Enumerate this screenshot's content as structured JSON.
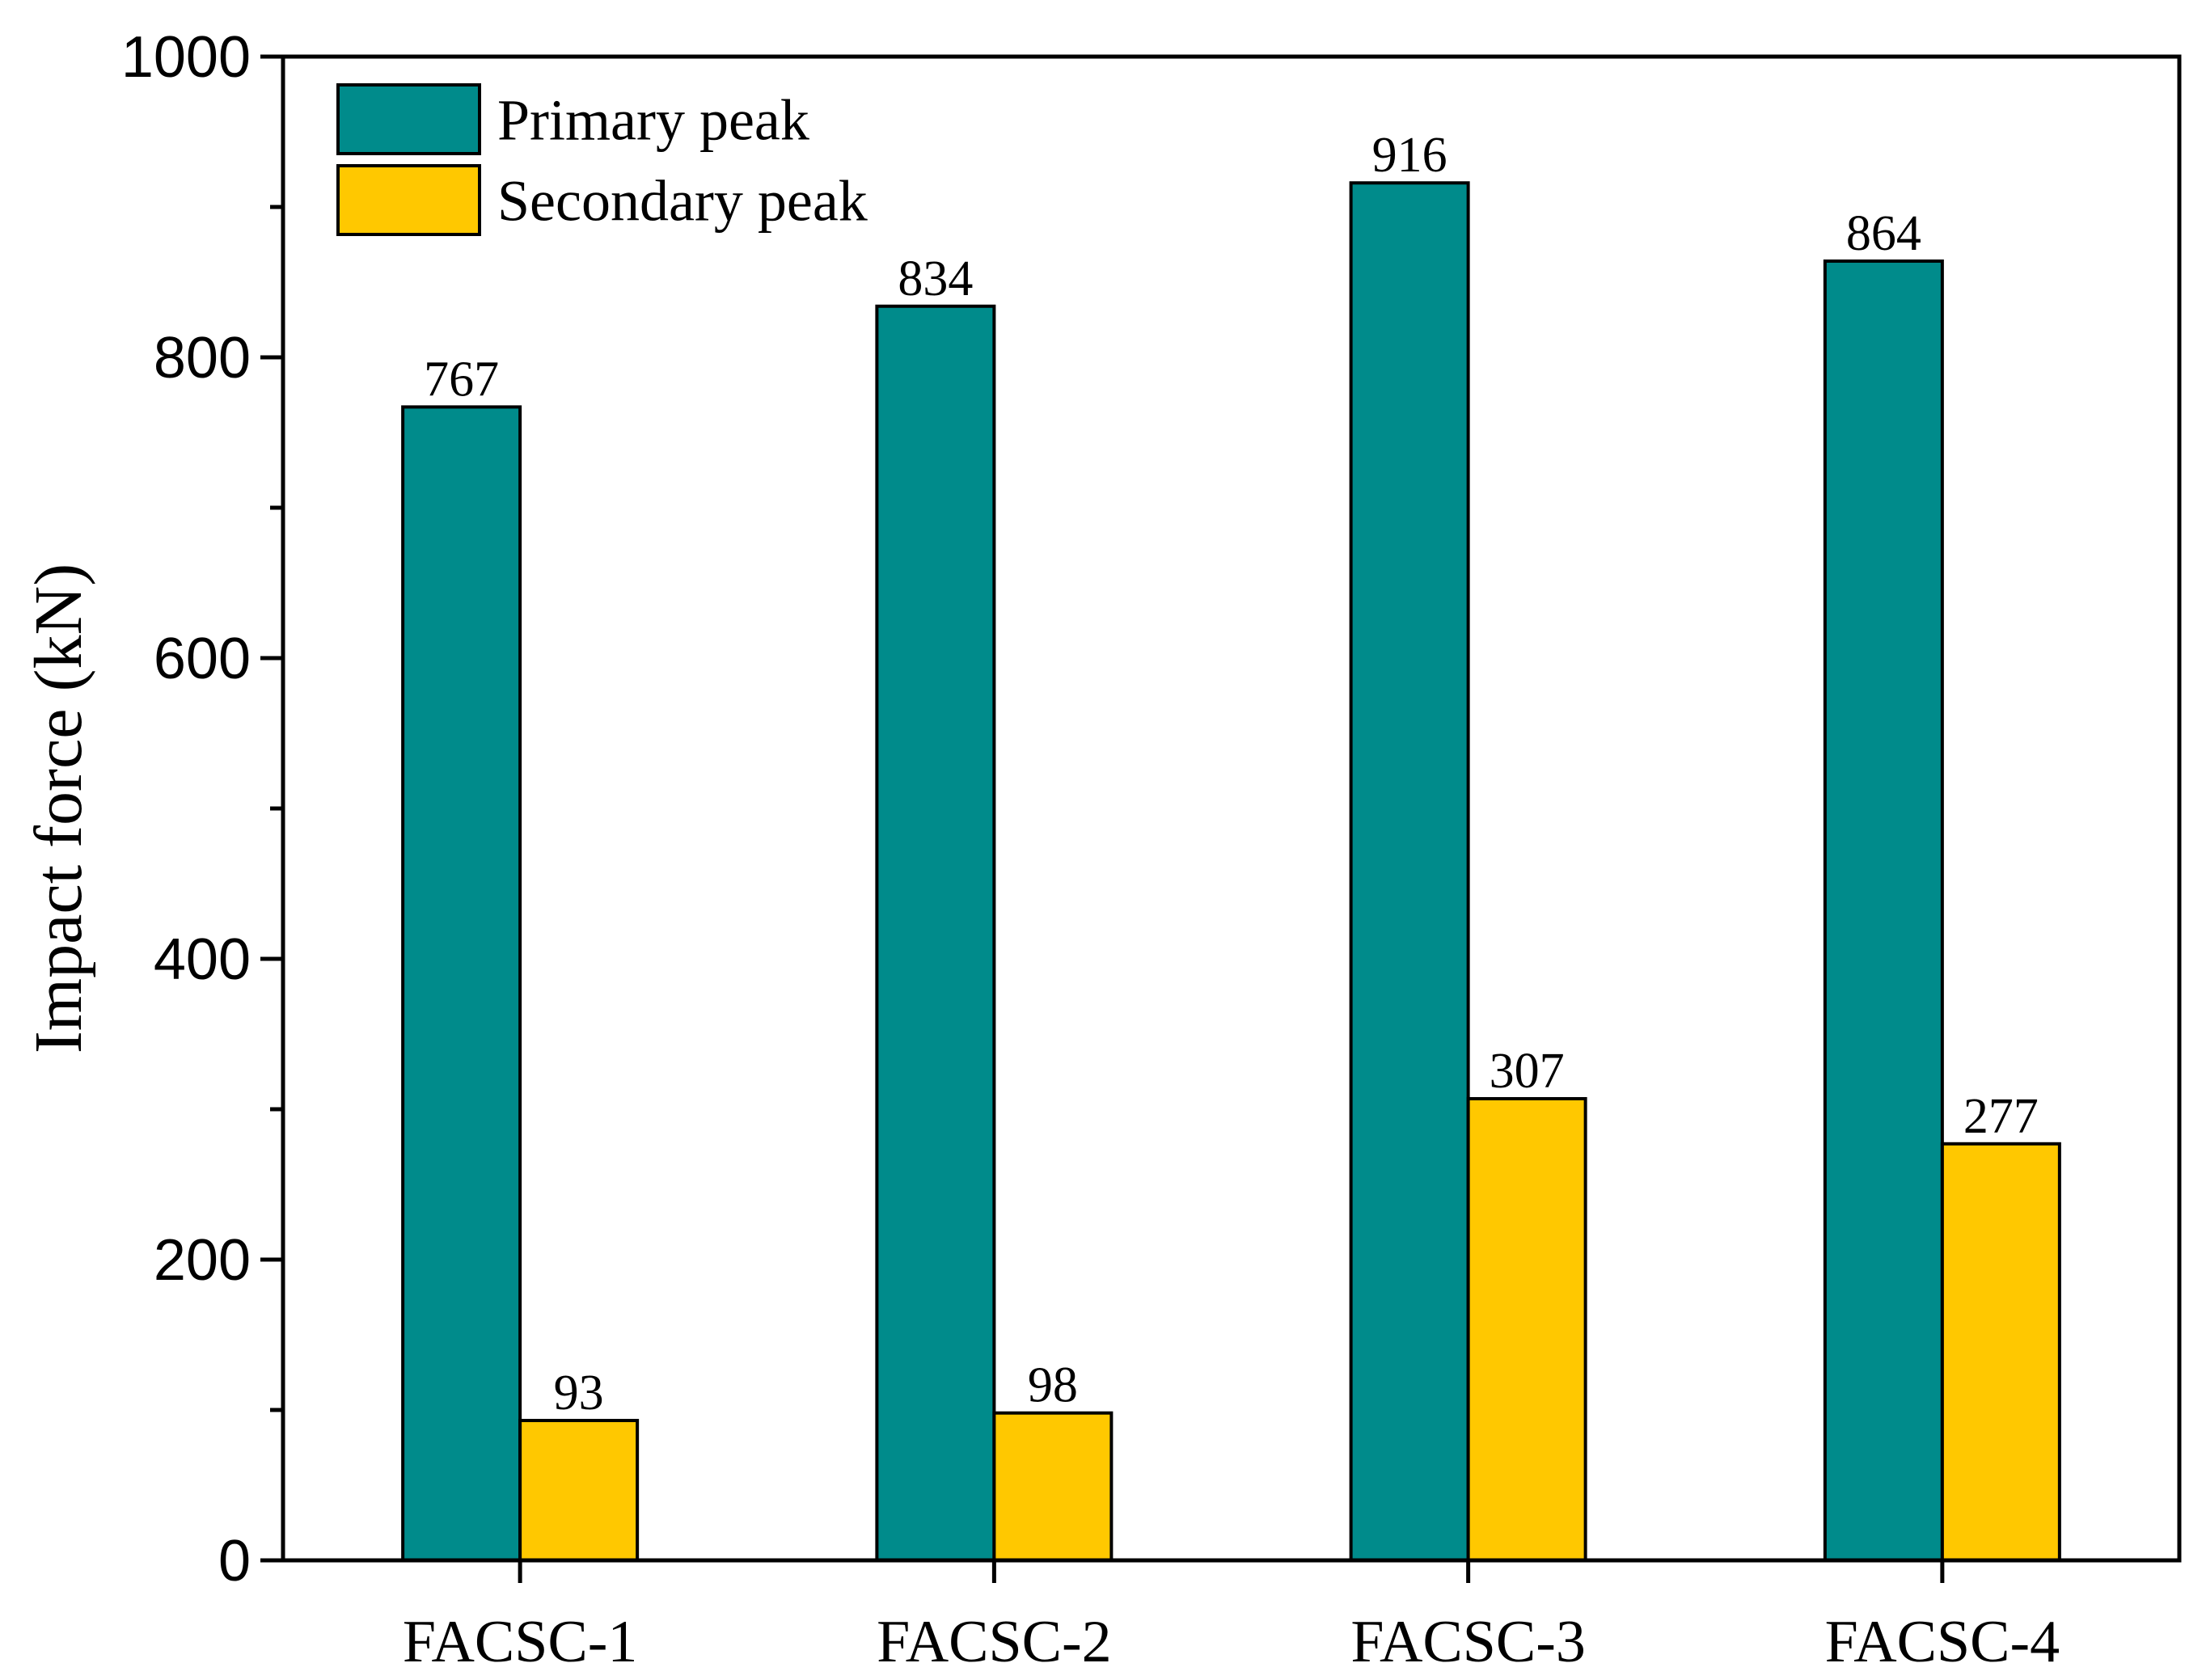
{
  "chart_data": {
    "type": "bar",
    "title": "",
    "xlabel": "",
    "ylabel": "Impact force (kN)",
    "ylim": [
      0,
      1000
    ],
    "yticks": [
      0,
      200,
      400,
      600,
      800,
      1000
    ],
    "categories": [
      "FACSC-1",
      "FACSC-2",
      "FACSC-3",
      "FACSC-4"
    ],
    "series": [
      {
        "name": "Primary peak",
        "color": "#008B8B",
        "values": [
          767,
          834,
          916,
          864
        ]
      },
      {
        "name": "Secondary peak",
        "color": "#FFC800",
        "values": [
          93,
          98,
          307,
          277
        ]
      }
    ],
    "legend_position": "top-left",
    "grid": false
  }
}
